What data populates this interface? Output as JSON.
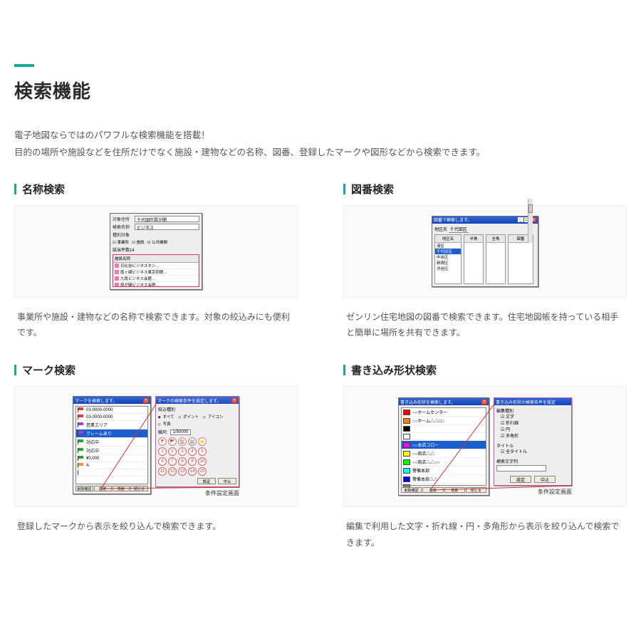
{
  "colors": {
    "accent": "#18a89b",
    "titlebar_gradient_top": "#2f66d5",
    "titlebar_gradient_bottom": "#1144b6",
    "highlight_border": "#d9366f",
    "text_body": "#555555",
    "text_heading": "#2b2b2b",
    "background": "#ffffff",
    "connector": "#cc3333"
  },
  "heading": "検索機能",
  "intro": {
    "line1": "電子地図ならではのパワフルな検索機能を搭載！",
    "line2": "目的の場所や施設などを住所だけでなく施設・建物などの名称、図番、登録したマークや図形などから検索できます。"
  },
  "cards": {
    "name_search": {
      "title": "名称検索",
      "desc": "事業所や施設・建物などの名称で検索できます。対象の絞込みにも便利です。",
      "screenshot": {
        "window_title": "名称で検索します。",
        "fields": {
          "area_label": "対象住所",
          "area_value": "千代田区霞が関",
          "name_label": "検索名称",
          "name_value": "ビジネス",
          "type_label": "種別対象"
        },
        "type_checks": [
          "事業所",
          "施設",
          "公共機関"
        ],
        "match_count_label": "該当件数14",
        "list_header": "施設名称",
        "list_items": [
          "日比谷ビジネスセン…",
          "霞ヶ関ビジネス東京別館…",
          "九段ビジネス会館…",
          "霞が関ビジネス会館…",
          "定形地区ビジネス空港…"
        ]
      }
    },
    "number_search": {
      "title": "図番検索",
      "desc": "ゼンリン住宅地図の図番で検索できます。住宅地図帳を持っている相手と簡単に場所を共有できます。",
      "screenshot": {
        "window_title": "図番で検索します。",
        "area_label": "地区名",
        "area_value": "千代田区",
        "columns": [
          "地区名",
          "半角",
          "全角",
          "図番"
        ],
        "col0_items": [
          "港区",
          "千代田区",
          "中央区",
          "新宿区",
          "渋谷区"
        ],
        "col0_selected_index": 1,
        "scrollbar": true
      }
    },
    "mark_search": {
      "title": "マーク検索",
      "desc": "登録したマークから表示を絞り込んで検索できます。",
      "caption": "条件設定画面",
      "list_window": {
        "title": "マークを検索します。",
        "items": [
          {
            "color": "#e23b3b",
            "label": "03-0000-0000"
          },
          {
            "color": "#e23b3b",
            "label": "03-0000-0000"
          },
          {
            "color": "#b536c8",
            "label": "営業エリア"
          },
          {
            "color": "#b536c8",
            "label": "クレームあり"
          },
          {
            "color": "#2aa336",
            "label": "対応中"
          },
          {
            "color": "#2aa336",
            "label": "対応中"
          },
          {
            "color": "#2aa336",
            "label": "¥0,000"
          },
          {
            "color": "#e99a2f",
            "label": "A"
          },
          {
            "color": "#ffffff",
            "label": ""
          }
        ],
        "selected_index": 3,
        "footer_buttons": [
          "削除確認",
          "設定",
          "検索",
          "閉じる"
        ]
      },
      "cond_window": {
        "title": "マークの検索条件を設定します。",
        "group_label": "絞込種別",
        "radios": [
          "すべて",
          "ポイント",
          "アイコン",
          "写真"
        ],
        "radio_selected": 0,
        "scale_label": "縮尺:",
        "scale_value": "1/50000",
        "buttons": [
          "設定",
          "中止"
        ],
        "mark_grid": {
          "icons": [
            "📍",
            "🚩",
            "🏠",
            "🏢",
            "⭐"
          ],
          "numbers": [
            "1",
            "2",
            "3",
            "4",
            "5",
            "6",
            "7",
            "8",
            "9",
            "10",
            "11",
            "12",
            "13",
            "14",
            "15",
            "16",
            "17",
            "18",
            "19",
            "20"
          ]
        }
      }
    },
    "shape_search": {
      "title": "書き込み形状検索",
      "desc": "編集で利用した文字・折れ線・円・多角形から表示を絞り込んで検索できます。",
      "caption": "条件設定画面",
      "list_window": {
        "title": "書き込み形状を検索します。",
        "items": [
          {
            "color": "#ff0000",
            "label": "○○ホームセンター"
          },
          {
            "color": "#ff7f00",
            "label": "○○ホーム△△□□"
          },
          {
            "color": "#000000",
            "label": ""
          },
          {
            "color": "#ffffff",
            "label": ""
          },
          {
            "color": "#ff00ff",
            "label": "○○本店コロー"
          },
          {
            "color": "#ffff00",
            "label": "○○商店△△"
          },
          {
            "color": "#00ff00",
            "label": "○○商店△△○○"
          },
          {
            "color": "#00ffff",
            "label": "警備本部"
          },
          {
            "color": "#0000ff",
            "label": "警備本部△△"
          },
          {
            "color": "#808080",
            "label": ""
          }
        ],
        "selected_index": 4,
        "footer_buttons": [
          "削除確認",
          "設定",
          "検索",
          "閉じる"
        ]
      },
      "cond_window": {
        "title": "書き込み形状の検索条件を設定",
        "group1_label": "編集種別",
        "group1_checks": [
          "文字",
          "折れ線",
          "円",
          "多角形"
        ],
        "group2_label": "タイトル",
        "group2_checks": [
          "全タイトル"
        ],
        "text_label": "検索文字列",
        "buttons": [
          "設定",
          "中止"
        ]
      }
    }
  }
}
